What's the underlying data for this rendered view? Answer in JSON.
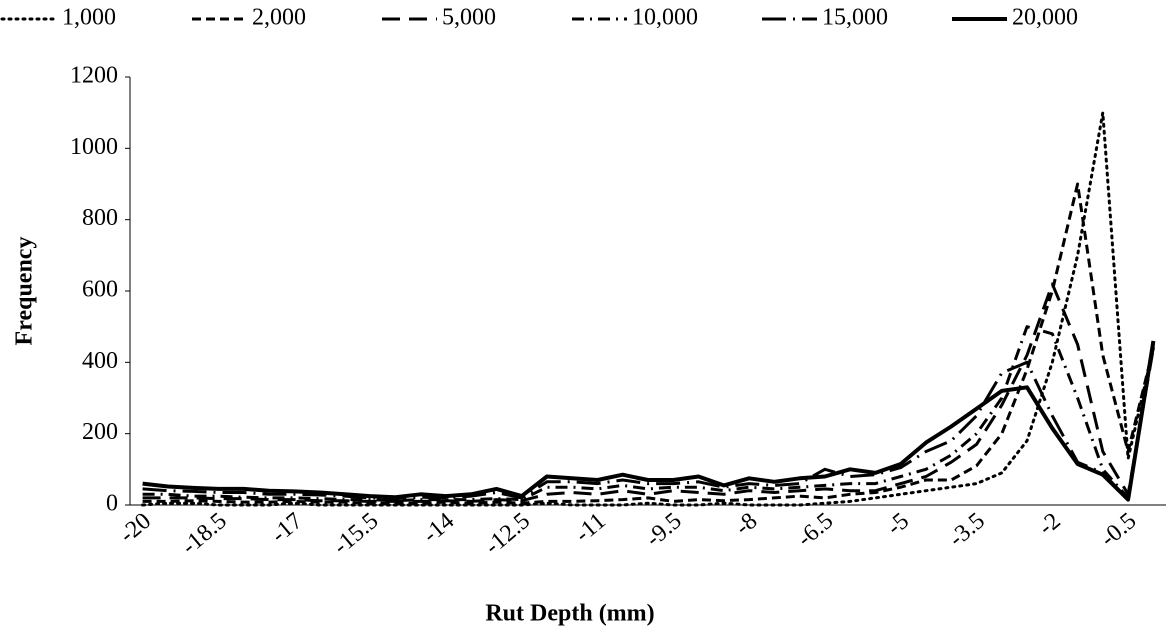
{
  "chart_data": {
    "type": "line",
    "xlabel": "Rut Depth (mm)",
    "ylabel": "Frequency",
    "categories": [
      "-20",
      null,
      null,
      "-18.5",
      null,
      null,
      "-17",
      null,
      null,
      "-15.5",
      null,
      null,
      "-14",
      null,
      null,
      "-12.5",
      null,
      null,
      "-11",
      null,
      null,
      "-9.5",
      null,
      null,
      "-8",
      null,
      null,
      "-6.5",
      null,
      null,
      "-5",
      null,
      null,
      "-3.5",
      null,
      null,
      "-2",
      null,
      null,
      "-0.5",
      null
    ],
    "ylim": [
      0,
      1200
    ],
    "yticks": [
      0,
      200,
      400,
      600,
      800,
      1000,
      1200
    ],
    "legend": "top",
    "series": [
      {
        "name": "1,000",
        "color": "#000000",
        "dash": "dotted",
        "values": [
          0,
          5,
          5,
          0,
          0,
          0,
          5,
          0,
          0,
          0,
          0,
          0,
          0,
          0,
          0,
          0,
          5,
          0,
          0,
          0,
          5,
          0,
          0,
          5,
          0,
          0,
          0,
          5,
          10,
          20,
          30,
          40,
          50,
          60,
          90,
          180,
          400,
          700,
          1100,
          130,
          440
        ]
      },
      {
        "name": "2,000",
        "color": "#000000",
        "dash": "short-dash",
        "values": [
          10,
          10,
          12,
          10,
          8,
          8,
          10,
          8,
          8,
          5,
          5,
          5,
          8,
          5,
          8,
          5,
          10,
          10,
          12,
          15,
          20,
          10,
          15,
          12,
          15,
          20,
          25,
          20,
          30,
          35,
          50,
          70,
          70,
          110,
          200,
          380,
          600,
          900,
          420,
          150,
          440
        ]
      },
      {
        "name": "5,000",
        "color": "#000000",
        "dash": "long-dash",
        "values": [
          20,
          20,
          20,
          18,
          18,
          15,
          15,
          12,
          12,
          10,
          10,
          10,
          12,
          10,
          15,
          12,
          30,
          35,
          30,
          40,
          30,
          40,
          35,
          30,
          40,
          35,
          40,
          45,
          40,
          40,
          60,
          80,
          120,
          170,
          280,
          420,
          620,
          450,
          150,
          30,
          440
        ]
      },
      {
        "name": "10,000",
        "color": "#000000",
        "dash": "dash-dot",
        "values": [
          30,
          30,
          25,
          25,
          22,
          20,
          20,
          18,
          15,
          15,
          12,
          15,
          15,
          15,
          18,
          15,
          50,
          50,
          45,
          55,
          45,
          50,
          50,
          40,
          50,
          45,
          50,
          55,
          60,
          60,
          80,
          100,
          140,
          200,
          300,
          500,
          480,
          300,
          100,
          20,
          450
        ]
      },
      {
        "name": "15,000",
        "color": "#000000",
        "dash": "long-dash-dot",
        "values": [
          45,
          40,
          38,
          35,
          35,
          30,
          30,
          28,
          25,
          20,
          18,
          22,
          20,
          25,
          35,
          20,
          65,
          65,
          60,
          70,
          60,
          60,
          65,
          50,
          60,
          55,
          60,
          100,
          80,
          85,
          105,
          150,
          180,
          250,
          370,
          400,
          250,
          120,
          90,
          15,
          460
        ]
      },
      {
        "name": "20,000",
        "color": "#000000",
        "dash": "solid",
        "values": [
          60,
          52,
          48,
          45,
          45,
          40,
          38,
          35,
          30,
          25,
          22,
          30,
          25,
          30,
          45,
          25,
          80,
          75,
          70,
          85,
          70,
          70,
          80,
          55,
          75,
          65,
          75,
          80,
          100,
          90,
          115,
          175,
          220,
          270,
          320,
          330,
          215,
          115,
          85,
          15,
          460
        ]
      }
    ]
  }
}
